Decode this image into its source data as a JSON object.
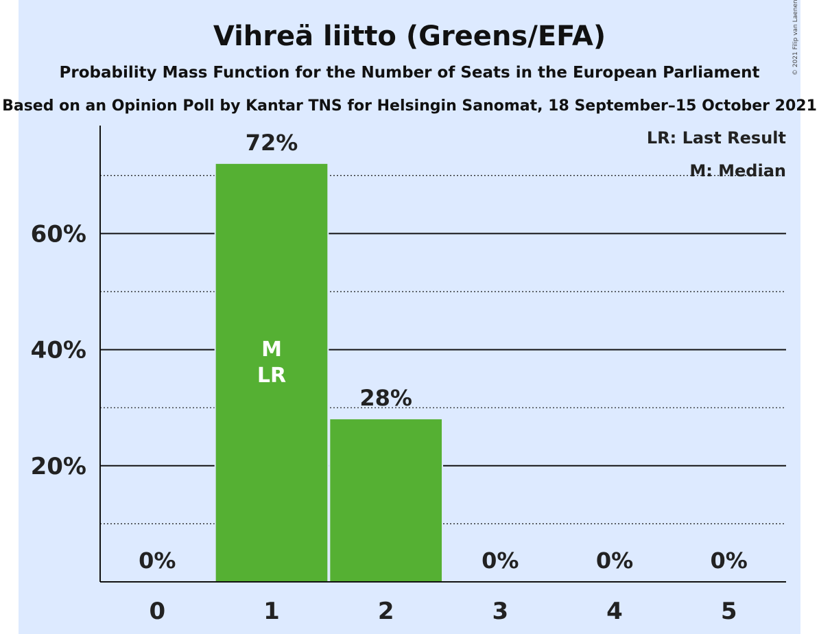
{
  "chart_data": {
    "type": "bar",
    "title": "Vihreä liitto (Greens/EFA)",
    "subtitle": "Probability Mass Function for the Number of Seats in the European Parliament",
    "subtitle2": "Based on an Opinion Poll by Kantar TNS for Helsingin Sanomat, 18 September–15 October 2021",
    "copyright": "© 2021 Filip van Laenen",
    "categories": [
      "0",
      "1",
      "2",
      "3",
      "4",
      "5"
    ],
    "values": [
      0,
      72,
      28,
      0,
      0,
      0
    ],
    "value_labels": [
      "0%",
      "72%",
      "28%",
      "0%",
      "0%",
      "0%"
    ],
    "ylim": [
      0,
      78.6
    ],
    "y_ticks": [
      {
        "value": 20,
        "label": "20%"
      },
      {
        "value": 40,
        "label": "40%"
      },
      {
        "value": 60,
        "label": "60%"
      }
    ],
    "y_minor_ticks": [
      10,
      30,
      50,
      70
    ],
    "bar_color": "#55b033",
    "background_color": "#ddeaff",
    "median_marker": {
      "category": "1",
      "text": "M"
    },
    "last_result_marker": {
      "category": "1",
      "text": "LR"
    },
    "legend": {
      "position": "top-right",
      "items": [
        "LR: Last Result",
        "M: Median"
      ]
    }
  }
}
